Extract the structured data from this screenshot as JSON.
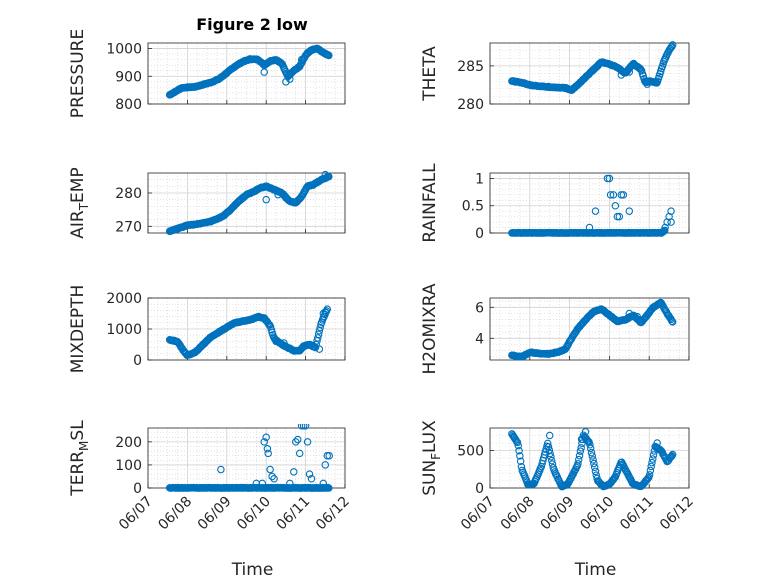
{
  "figure": {
    "title": "Figure 2 low",
    "marker_color": "#0072bd",
    "grid_color": "#d0d0d0",
    "axis_color": "#262626"
  },
  "chart_data": [
    {
      "type": "scatter",
      "id": "pressure",
      "ylabel": "PRESSURE",
      "xlabel": "",
      "xlim": [
        "06/07",
        "06/12"
      ],
      "ylim": [
        800,
        1020
      ],
      "yticks": [
        800,
        900,
        1000
      ],
      "ytick_labels": [
        "800",
        "900",
        "1000"
      ],
      "xtick_labels": [],
      "anchors": [
        [
          7.55,
          833
        ],
        [
          7.7,
          845
        ],
        [
          7.85,
          858
        ],
        [
          8.0,
          860
        ],
        [
          8.2,
          862
        ],
        [
          8.4,
          870
        ],
        [
          8.6,
          878
        ],
        [
          8.8,
          890
        ],
        [
          9.0,
          912
        ],
        [
          9.2,
          935
        ],
        [
          9.4,
          952
        ],
        [
          9.6,
          962
        ],
        [
          9.8,
          960
        ],
        [
          9.95,
          940
        ],
        [
          10.1,
          955
        ],
        [
          10.25,
          960
        ],
        [
          10.4,
          945
        ],
        [
          10.55,
          900
        ],
        [
          10.7,
          920
        ],
        [
          10.85,
          935
        ],
        [
          11.0,
          975
        ],
        [
          11.15,
          995
        ],
        [
          11.3,
          1000
        ],
        [
          11.45,
          985
        ],
        [
          11.6,
          975
        ]
      ],
      "extra_points": [
        [
          9.95,
          915
        ],
        [
          10.5,
          880
        ],
        [
          10.6,
          890
        ],
        [
          10.9,
          960
        ],
        [
          11.05,
          985
        ]
      ]
    },
    {
      "type": "scatter",
      "id": "theta",
      "ylabel": "THETA",
      "xlabel": "",
      "xlim": [
        "06/07",
        "06/12"
      ],
      "ylim": [
        280,
        288
      ],
      "yticks": [
        280,
        285
      ],
      "ytick_labels": [
        "280",
        "285"
      ],
      "xtick_labels": [],
      "anchors": [
        [
          7.55,
          283
        ],
        [
          7.8,
          282.8
        ],
        [
          8.0,
          282.5
        ],
        [
          8.3,
          282.3
        ],
        [
          8.6,
          282.2
        ],
        [
          8.9,
          282.1
        ],
        [
          9.05,
          281.8
        ],
        [
          9.2,
          282.5
        ],
        [
          9.4,
          283.5
        ],
        [
          9.6,
          284.5
        ],
        [
          9.8,
          285.5
        ],
        [
          10.0,
          285.2
        ],
        [
          10.2,
          284.8
        ],
        [
          10.4,
          284
        ],
        [
          10.6,
          285.3
        ],
        [
          10.8,
          284.5
        ],
        [
          10.9,
          282.8
        ],
        [
          11.0,
          283
        ],
        [
          11.2,
          282.8
        ],
        [
          11.3,
          284.5
        ],
        [
          11.4,
          286
        ],
        [
          11.5,
          287
        ],
        [
          11.6,
          287.8
        ]
      ],
      "extra_points": [
        [
          10.3,
          283.8
        ],
        [
          10.5,
          284.2
        ],
        [
          10.95,
          282.6
        ]
      ]
    },
    {
      "type": "scatter",
      "id": "air_temp",
      "ylabel": "AIR",
      "ylabel_sub": "T",
      "ylabel_rest": "EMP",
      "xlabel": "",
      "xlim": [
        "06/07",
        "06/12"
      ],
      "ylim": [
        268,
        286
      ],
      "yticks": [
        270,
        280
      ],
      "ytick_labels": [
        "270",
        "280"
      ],
      "xtick_labels": [],
      "anchors": [
        [
          7.55,
          268.5
        ],
        [
          7.8,
          269.5
        ],
        [
          8.0,
          270.3
        ],
        [
          8.3,
          270.8
        ],
        [
          8.6,
          271.5
        ],
        [
          8.9,
          273
        ],
        [
          9.1,
          275
        ],
        [
          9.3,
          277.5
        ],
        [
          9.5,
          279.5
        ],
        [
          9.7,
          280.5
        ],
        [
          9.85,
          281.5
        ],
        [
          10.0,
          282
        ],
        [
          10.2,
          281
        ],
        [
          10.4,
          280
        ],
        [
          10.6,
          277.5
        ],
        [
          10.75,
          277
        ],
        [
          10.9,
          279
        ],
        [
          11.05,
          282
        ],
        [
          11.2,
          282.5
        ],
        [
          11.4,
          284
        ],
        [
          11.6,
          285
        ]
      ],
      "extra_points": [
        [
          10.0,
          278
        ],
        [
          10.3,
          279.5
        ],
        [
          10.5,
          278.5
        ],
        [
          11.5,
          285.5
        ]
      ]
    },
    {
      "type": "scatter",
      "id": "rainfall",
      "ylabel": "RAINFALL",
      "xlabel": "",
      "xlim": [
        "06/07",
        "06/12"
      ],
      "ylim": [
        0,
        1.1
      ],
      "yticks": [
        0,
        0.5,
        1
      ],
      "ytick_labels": [
        "0",
        "0.5",
        "1"
      ],
      "xtick_labels": [],
      "anchors": [
        [
          7.55,
          0
        ],
        [
          9.8,
          0
        ],
        [
          9.95,
          0
        ],
        [
          10.0,
          0
        ],
        [
          10.7,
          0
        ],
        [
          11.3,
          0
        ],
        [
          11.4,
          0.05
        ]
      ],
      "extra_points": [
        [
          9.5,
          0.1
        ],
        [
          9.65,
          0.4
        ],
        [
          9.95,
          1.0
        ],
        [
          10.0,
          1.0
        ],
        [
          10.03,
          0.7
        ],
        [
          10.1,
          0.7
        ],
        [
          10.15,
          0.5
        ],
        [
          10.2,
          0.3
        ],
        [
          10.25,
          0.3
        ],
        [
          10.3,
          0.7
        ],
        [
          10.35,
          0.7
        ],
        [
          10.5,
          0.4
        ],
        [
          11.45,
          0.2
        ],
        [
          11.5,
          0.3
        ],
        [
          11.55,
          0.4
        ],
        [
          11.55,
          0.2
        ],
        [
          11.4,
          0.1
        ]
      ]
    },
    {
      "type": "scatter",
      "id": "mixdepth",
      "ylabel": "MIXDEPTH",
      "xlabel": "",
      "xlim": [
        "06/07",
        "06/12"
      ],
      "ylim": [
        0,
        2000
      ],
      "yticks": [
        0,
        1000,
        2000
      ],
      "ytick_labels": [
        "0",
        "1000",
        "2000"
      ],
      "xtick_labels": [],
      "anchors": [
        [
          7.55,
          650
        ],
        [
          7.75,
          600
        ],
        [
          7.9,
          300
        ],
        [
          8.0,
          150
        ],
        [
          8.2,
          250
        ],
        [
          8.4,
          500
        ],
        [
          8.6,
          750
        ],
        [
          8.8,
          900
        ],
        [
          9.0,
          1050
        ],
        [
          9.2,
          1200
        ],
        [
          9.4,
          1250
        ],
        [
          9.6,
          1300
        ],
        [
          9.8,
          1400
        ],
        [
          9.95,
          1350
        ],
        [
          10.1,
          1100
        ],
        [
          10.2,
          700
        ],
        [
          10.4,
          500
        ],
        [
          10.55,
          400
        ],
        [
          10.7,
          300
        ],
        [
          10.85,
          300
        ],
        [
          10.95,
          450
        ],
        [
          11.1,
          500
        ],
        [
          11.25,
          400
        ],
        [
          11.4,
          1200
        ],
        [
          11.55,
          1650
        ]
      ],
      "extra_points": [
        [
          10.25,
          600
        ],
        [
          10.45,
          550
        ],
        [
          11.45,
          1500
        ],
        [
          11.5,
          1550
        ],
        [
          11.35,
          350
        ]
      ]
    },
    {
      "type": "scatter",
      "id": "h2omixra",
      "ylabel": "H2OMIXRA",
      "xlabel": "",
      "xlim": [
        "06/07",
        "06/12"
      ],
      "ylim": [
        2.6,
        6.6
      ],
      "yticks": [
        4,
        6
      ],
      "ytick_labels": [
        "4",
        "6"
      ],
      "xtick_labels": [],
      "anchors": [
        [
          7.55,
          2.9
        ],
        [
          7.8,
          2.8
        ],
        [
          8.0,
          3.1
        ],
        [
          8.3,
          3.0
        ],
        [
          8.5,
          3.0
        ],
        [
          8.7,
          3.1
        ],
        [
          8.9,
          3.3
        ],
        [
          9.0,
          3.8
        ],
        [
          9.2,
          4.6
        ],
        [
          9.4,
          5.2
        ],
        [
          9.6,
          5.7
        ],
        [
          9.8,
          5.9
        ],
        [
          10.0,
          5.5
        ],
        [
          10.2,
          5.1
        ],
        [
          10.4,
          5.2
        ],
        [
          10.6,
          5.5
        ],
        [
          10.8,
          5.0
        ],
        [
          10.95,
          5.5
        ],
        [
          11.1,
          6.0
        ],
        [
          11.3,
          6.3
        ],
        [
          11.45,
          5.6
        ],
        [
          11.6,
          5.0
        ]
      ],
      "extra_points": [
        [
          9.85,
          5.8
        ],
        [
          10.5,
          5.6
        ],
        [
          10.7,
          5.4
        ]
      ]
    },
    {
      "type": "scatter",
      "id": "terr_msl",
      "ylabel": "TERR",
      "ylabel_sub": "M",
      "ylabel_rest": "SL",
      "xlabel": "Time",
      "xlim": [
        "06/07",
        "06/12"
      ],
      "ylim": [
        0,
        260
      ],
      "yticks": [
        0,
        100,
        200
      ],
      "ytick_labels": [
        "0",
        "100",
        "200"
      ],
      "xtick_positions": [
        7,
        8,
        9,
        10,
        11,
        12
      ],
      "xtick_labels": [
        "06/07",
        "06/08",
        "06/09",
        "06/10",
        "06/11",
        "06/12"
      ],
      "anchors": [
        [
          7.55,
          0
        ],
        [
          9.8,
          0
        ],
        [
          11.6,
          0
        ]
      ],
      "extra_points": [
        [
          8.85,
          80
        ],
        [
          9.75,
          20
        ],
        [
          9.9,
          20
        ],
        [
          9.95,
          200
        ],
        [
          10.0,
          220
        ],
        [
          10.03,
          170
        ],
        [
          10.05,
          150
        ],
        [
          10.1,
          80
        ],
        [
          10.15,
          50
        ],
        [
          10.2,
          40
        ],
        [
          10.6,
          20
        ],
        [
          10.7,
          70
        ],
        [
          10.75,
          200
        ],
        [
          10.8,
          210
        ],
        [
          10.85,
          150
        ],
        [
          10.9,
          270
        ],
        [
          10.95,
          270
        ],
        [
          11.0,
          270
        ],
        [
          11.05,
          200
        ],
        [
          11.1,
          60
        ],
        [
          11.15,
          40
        ],
        [
          11.45,
          20
        ],
        [
          11.5,
          100
        ],
        [
          11.55,
          140
        ],
        [
          11.6,
          140
        ]
      ]
    },
    {
      "type": "scatter",
      "id": "sun_flux",
      "ylabel": "SUN",
      "ylabel_sub": "F",
      "ylabel_rest": "LUX",
      "xlabel": "Time",
      "xlim": [
        "06/07",
        "06/12"
      ],
      "ylim": [
        0,
        800
      ],
      "yticks": [
        0,
        500
      ],
      "ytick_labels": [
        "0",
        "500"
      ],
      "xtick_positions": [
        7,
        8,
        9,
        10,
        11,
        12
      ],
      "xtick_labels": [
        "06/07",
        "06/08",
        "06/09",
        "06/10",
        "06/11",
        "06/12"
      ],
      "anchors": [
        [
          7.55,
          720
        ],
        [
          7.7,
          600
        ],
        [
          7.8,
          250
        ],
        [
          7.95,
          50
        ],
        [
          8.1,
          50
        ],
        [
          8.3,
          300
        ],
        [
          8.45,
          600
        ],
        [
          8.6,
          250
        ],
        [
          8.8,
          20
        ],
        [
          8.95,
          50
        ],
        [
          9.2,
          300
        ],
        [
          9.35,
          700
        ],
        [
          9.5,
          600
        ],
        [
          9.7,
          100
        ],
        [
          9.85,
          20
        ],
        [
          10.0,
          50
        ],
        [
          10.15,
          150
        ],
        [
          10.3,
          350
        ],
        [
          10.45,
          200
        ],
        [
          10.6,
          50
        ],
        [
          10.8,
          20
        ],
        [
          11.0,
          150
        ],
        [
          11.15,
          550
        ],
        [
          11.3,
          500
        ],
        [
          11.45,
          350
        ],
        [
          11.6,
          450
        ]
      ],
      "extra_points": [
        [
          7.6,
          680
        ],
        [
          8.5,
          700
        ],
        [
          9.3,
          650
        ],
        [
          9.4,
          750
        ],
        [
          11.2,
          600
        ],
        [
          11.55,
          420
        ]
      ]
    }
  ]
}
